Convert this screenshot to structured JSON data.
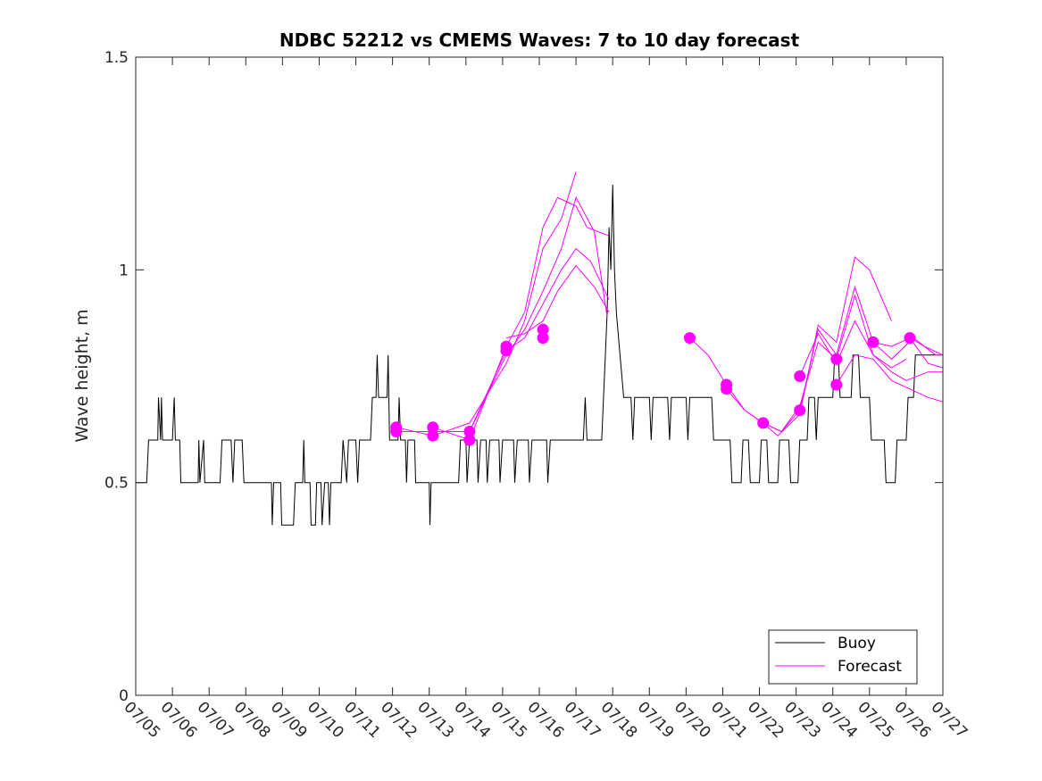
{
  "chart_data": {
    "type": "line",
    "title": "NDBC 52212 vs CMEMS Waves: 7 to 10 day forecast",
    "xlabel": "",
    "ylabel": "Wave height, m",
    "xlim": [
      "07/05",
      "07/27"
    ],
    "ylim": [
      0,
      1.5
    ],
    "x_ticks": [
      "07/05",
      "07/06",
      "07/07",
      "07/08",
      "07/09",
      "07/10",
      "07/11",
      "07/12",
      "07/13",
      "07/14",
      "07/15",
      "07/16",
      "07/17",
      "07/18",
      "07/19",
      "07/20",
      "07/21",
      "07/22",
      "07/23",
      "07/24",
      "07/25",
      "07/26",
      "07/27"
    ],
    "y_ticks": [
      0,
      0.5,
      1,
      1.5
    ],
    "y_tick_labels": [
      "0",
      "0.5",
      "1",
      "1.5"
    ],
    "grid": false,
    "legend": {
      "placement": "bottom-right",
      "entries": [
        {
          "name": "Buoy",
          "color": "#000000"
        },
        {
          "name": "Forecast",
          "color": "#ff00ff"
        }
      ]
    },
    "series": [
      {
        "name": "Buoy",
        "color": "#000000",
        "style": "step",
        "points": [
          [
            0.0,
            0.5
          ],
          [
            0.3,
            0.5
          ],
          [
            0.35,
            0.6
          ],
          [
            0.6,
            0.6
          ],
          [
            0.62,
            0.7
          ],
          [
            0.68,
            0.6
          ],
          [
            0.7,
            0.7
          ],
          [
            0.73,
            0.6
          ],
          [
            1.0,
            0.6
          ],
          [
            1.05,
            0.7
          ],
          [
            1.08,
            0.6
          ],
          [
            1.2,
            0.6
          ],
          [
            1.23,
            0.5
          ],
          [
            1.7,
            0.5
          ],
          [
            1.72,
            0.6
          ],
          [
            1.75,
            0.5
          ],
          [
            1.85,
            0.6
          ],
          [
            1.88,
            0.5
          ],
          [
            2.3,
            0.5
          ],
          [
            2.35,
            0.6
          ],
          [
            2.6,
            0.6
          ],
          [
            2.65,
            0.5
          ],
          [
            2.7,
            0.6
          ],
          [
            2.9,
            0.6
          ],
          [
            2.95,
            0.5
          ],
          [
            3.7,
            0.5
          ],
          [
            3.72,
            0.4
          ],
          [
            3.76,
            0.5
          ],
          [
            3.95,
            0.5
          ],
          [
            3.98,
            0.4
          ],
          [
            4.3,
            0.4
          ],
          [
            4.35,
            0.5
          ],
          [
            4.55,
            0.5
          ],
          [
            4.58,
            0.6
          ],
          [
            4.61,
            0.5
          ],
          [
            4.75,
            0.5
          ],
          [
            4.78,
            0.4
          ],
          [
            4.9,
            0.4
          ],
          [
            4.93,
            0.5
          ],
          [
            5.05,
            0.5
          ],
          [
            5.08,
            0.4
          ],
          [
            5.15,
            0.5
          ],
          [
            5.25,
            0.5
          ],
          [
            5.28,
            0.4
          ],
          [
            5.32,
            0.5
          ],
          [
            5.6,
            0.5
          ],
          [
            5.65,
            0.6
          ],
          [
            5.75,
            0.5
          ],
          [
            5.8,
            0.6
          ],
          [
            6.0,
            0.6
          ],
          [
            6.05,
            0.5
          ],
          [
            6.1,
            0.6
          ],
          [
            6.4,
            0.6
          ],
          [
            6.45,
            0.7
          ],
          [
            6.55,
            0.7
          ],
          [
            6.58,
            0.8
          ],
          [
            6.62,
            0.7
          ],
          [
            6.85,
            0.7
          ],
          [
            6.88,
            0.8
          ],
          [
            6.92,
            0.6
          ],
          [
            7.15,
            0.6
          ],
          [
            7.18,
            0.7
          ],
          [
            7.22,
            0.6
          ],
          [
            7.35,
            0.6
          ],
          [
            7.38,
            0.5
          ],
          [
            7.42,
            0.6
          ],
          [
            7.6,
            0.6
          ],
          [
            7.63,
            0.5
          ],
          [
            8.0,
            0.5
          ],
          [
            8.02,
            0.4
          ],
          [
            8.05,
            0.5
          ],
          [
            8.8,
            0.5
          ],
          [
            8.85,
            0.6
          ],
          [
            9.0,
            0.6
          ],
          [
            9.03,
            0.5
          ],
          [
            9.1,
            0.6
          ],
          [
            9.3,
            0.6
          ],
          [
            9.33,
            0.5
          ],
          [
            9.4,
            0.6
          ],
          [
            9.55,
            0.6
          ],
          [
            9.58,
            0.5
          ],
          [
            9.65,
            0.6
          ],
          [
            9.9,
            0.6
          ],
          [
            9.93,
            0.5
          ],
          [
            10.0,
            0.6
          ],
          [
            10.3,
            0.6
          ],
          [
            10.33,
            0.5
          ],
          [
            10.4,
            0.6
          ],
          [
            10.7,
            0.6
          ],
          [
            10.73,
            0.5
          ],
          [
            10.8,
            0.6
          ],
          [
            11.2,
            0.6
          ],
          [
            11.23,
            0.5
          ],
          [
            11.3,
            0.6
          ],
          [
            12.2,
            0.6
          ],
          [
            12.25,
            0.7
          ],
          [
            12.3,
            0.6
          ],
          [
            12.7,
            0.6
          ],
          [
            12.75,
            0.7
          ],
          [
            12.8,
            0.8
          ],
          [
            12.85,
            0.9
          ],
          [
            12.9,
            1.1
          ],
          [
            12.95,
            1.0
          ],
          [
            13.0,
            1.2
          ],
          [
            13.05,
            1.0
          ],
          [
            13.1,
            0.9
          ],
          [
            13.2,
            0.8
          ],
          [
            13.3,
            0.7
          ],
          [
            13.5,
            0.7
          ],
          [
            13.55,
            0.6
          ],
          [
            13.6,
            0.7
          ],
          [
            14.0,
            0.7
          ],
          [
            14.05,
            0.6
          ],
          [
            14.1,
            0.7
          ],
          [
            14.5,
            0.7
          ],
          [
            14.55,
            0.6
          ],
          [
            14.6,
            0.7
          ],
          [
            15.0,
            0.7
          ],
          [
            15.05,
            0.6
          ],
          [
            15.1,
            0.7
          ],
          [
            15.7,
            0.7
          ],
          [
            15.75,
            0.6
          ],
          [
            16.2,
            0.6
          ],
          [
            16.25,
            0.5
          ],
          [
            16.5,
            0.5
          ],
          [
            16.55,
            0.6
          ],
          [
            16.7,
            0.6
          ],
          [
            16.75,
            0.5
          ],
          [
            17.0,
            0.5
          ],
          [
            17.05,
            0.6
          ],
          [
            17.2,
            0.6
          ],
          [
            17.25,
            0.5
          ],
          [
            17.5,
            0.5
          ],
          [
            17.55,
            0.6
          ],
          [
            17.8,
            0.6
          ],
          [
            17.85,
            0.5
          ],
          [
            18.05,
            0.5
          ],
          [
            18.1,
            0.6
          ],
          [
            18.3,
            0.6
          ],
          [
            18.35,
            0.7
          ],
          [
            18.5,
            0.7
          ],
          [
            18.55,
            0.6
          ],
          [
            18.6,
            0.7
          ],
          [
            19.0,
            0.7
          ],
          [
            19.05,
            0.8
          ],
          [
            19.15,
            0.8
          ],
          [
            19.2,
            0.7
          ],
          [
            19.5,
            0.7
          ],
          [
            19.55,
            0.8
          ],
          [
            19.7,
            0.8
          ],
          [
            19.75,
            0.7
          ],
          [
            20.0,
            0.7
          ],
          [
            20.05,
            0.6
          ],
          [
            20.4,
            0.6
          ],
          [
            20.45,
            0.5
          ],
          [
            20.7,
            0.5
          ],
          [
            20.75,
            0.6
          ],
          [
            21.0,
            0.6
          ],
          [
            21.05,
            0.7
          ],
          [
            21.2,
            0.7
          ],
          [
            21.25,
            0.8
          ],
          [
            22.0,
            0.8
          ]
        ]
      },
      {
        "name": "Forecast",
        "color": "#ff00ff",
        "points": [
          [
            7.1,
            0.62
          ],
          [
            8.1,
            0.62
          ],
          [
            9.1,
            0.62
          ],
          [
            10.1,
            0.8
          ],
          [
            10.6,
            0.86
          ],
          [
            11.1,
            0.95
          ],
          [
            11.6,
            1.05
          ],
          [
            12.0,
            1.17
          ],
          [
            12.5,
            1.09
          ],
          [
            12.85,
            0.89
          ]
        ]
      },
      {
        "name": "Forecast",
        "color": "#ff00ff",
        "points": [
          [
            7.1,
            0.63
          ],
          [
            8.1,
            0.61
          ],
          [
            9.1,
            0.64
          ],
          [
            10.1,
            0.78
          ],
          [
            10.6,
            0.88
          ],
          [
            11.1,
            1.05
          ],
          [
            11.6,
            1.12
          ],
          [
            12.0,
            1.23
          ]
        ]
      },
      {
        "name": "Forecast",
        "color": "#ff00ff",
        "points": [
          [
            8.1,
            0.63
          ],
          [
            9.1,
            0.6
          ],
          [
            10.1,
            0.82
          ],
          [
            10.6,
            0.9
          ],
          [
            11.1,
            1.1
          ],
          [
            11.5,
            1.17
          ],
          [
            12.0,
            1.15
          ],
          [
            12.3,
            1.1
          ],
          [
            12.9,
            1.08
          ]
        ]
      },
      {
        "name": "Forecast",
        "color": "#ff00ff",
        "points": [
          [
            9.1,
            0.62
          ],
          [
            10.1,
            0.81
          ],
          [
            10.6,
            0.84
          ],
          [
            11.1,
            0.92
          ],
          [
            11.6,
            1.0
          ],
          [
            12.0,
            1.05
          ],
          [
            12.4,
            1.02
          ],
          [
            12.9,
            0.93
          ]
        ]
      },
      {
        "name": "Forecast",
        "color": "#ff00ff",
        "points": [
          [
            10.1,
            0.84
          ],
          [
            10.6,
            0.85
          ],
          [
            11.1,
            0.88
          ],
          [
            11.5,
            0.95
          ],
          [
            12.0,
            1.01
          ],
          [
            12.5,
            0.96
          ],
          [
            12.9,
            0.9
          ]
        ]
      },
      {
        "name": "Forecast",
        "color": "#ff00ff",
        "points": [
          [
            15.1,
            0.84
          ],
          [
            15.6,
            0.8
          ],
          [
            16.1,
            0.73
          ],
          [
            16.6,
            0.67
          ],
          [
            17.1,
            0.64
          ],
          [
            17.5,
            0.61
          ],
          [
            18.1,
            0.66
          ],
          [
            18.6,
            0.87
          ],
          [
            19.1,
            0.83
          ],
          [
            19.6,
            1.03
          ],
          [
            20.0,
            1.0
          ],
          [
            20.6,
            0.88
          ]
        ]
      },
      {
        "name": "Forecast",
        "color": "#ff00ff",
        "points": [
          [
            16.1,
            0.72
          ],
          [
            16.6,
            0.67
          ],
          [
            17.1,
            0.64
          ],
          [
            17.6,
            0.62
          ],
          [
            18.1,
            0.68
          ],
          [
            18.6,
            0.83
          ],
          [
            19.1,
            0.79
          ],
          [
            19.6,
            0.94
          ],
          [
            20.1,
            0.8
          ],
          [
            20.6,
            0.77
          ],
          [
            21.0,
            0.79
          ]
        ]
      },
      {
        "name": "Forecast",
        "color": "#ff00ff",
        "points": [
          [
            17.1,
            0.64
          ],
          [
            17.6,
            0.62
          ],
          [
            18.1,
            0.67
          ],
          [
            18.6,
            0.86
          ],
          [
            19.1,
            0.8
          ],
          [
            19.6,
            0.96
          ],
          [
            20.1,
            0.83
          ],
          [
            20.6,
            0.79
          ],
          [
            21.2,
            0.84
          ],
          [
            21.8,
            0.8
          ],
          [
            22.0,
            0.8
          ]
        ]
      },
      {
        "name": "Forecast",
        "color": "#ff00ff",
        "points": [
          [
            18.1,
            0.75
          ],
          [
            18.6,
            0.85
          ],
          [
            19.1,
            0.78
          ],
          [
            19.6,
            0.88
          ],
          [
            20.1,
            0.8
          ],
          [
            20.6,
            0.76
          ],
          [
            21.0,
            0.74
          ],
          [
            21.6,
            0.76
          ],
          [
            22.0,
            0.76
          ]
        ]
      },
      {
        "name": "Forecast",
        "color": "#ff00ff",
        "points": [
          [
            19.1,
            0.73
          ],
          [
            19.6,
            0.8
          ],
          [
            20.1,
            0.79
          ],
          [
            20.6,
            0.74
          ],
          [
            21.1,
            0.72
          ],
          [
            21.6,
            0.7
          ],
          [
            22.0,
            0.69
          ]
        ]
      },
      {
        "name": "Forecast",
        "color": "#ff00ff",
        "points": [
          [
            20.1,
            0.83
          ],
          [
            20.6,
            0.82
          ],
          [
            21.1,
            0.84
          ],
          [
            21.6,
            0.78
          ],
          [
            22.0,
            0.77
          ]
        ]
      },
      {
        "name": "Forecast",
        "color": "#ff00ff",
        "points": [
          [
            21.1,
            0.84
          ],
          [
            21.5,
            0.82
          ],
          [
            22.0,
            0.8
          ]
        ]
      }
    ],
    "markers": {
      "name": "Forecast",
      "color": "#ff00ff",
      "points": [
        [
          7.1,
          0.63
        ],
        [
          7.1,
          0.62
        ],
        [
          8.1,
          0.63
        ],
        [
          8.1,
          0.61
        ],
        [
          9.1,
          0.62
        ],
        [
          9.1,
          0.6
        ],
        [
          10.1,
          0.82
        ],
        [
          10.1,
          0.81
        ],
        [
          11.1,
          0.86
        ],
        [
          11.1,
          0.84
        ],
        [
          15.1,
          0.84
        ],
        [
          16.1,
          0.73
        ],
        [
          16.1,
          0.72
        ],
        [
          17.1,
          0.64
        ],
        [
          18.1,
          0.75
        ],
        [
          18.1,
          0.67
        ],
        [
          19.1,
          0.79
        ],
        [
          19.1,
          0.73
        ],
        [
          20.1,
          0.83
        ],
        [
          21.1,
          0.84
        ]
      ]
    }
  }
}
